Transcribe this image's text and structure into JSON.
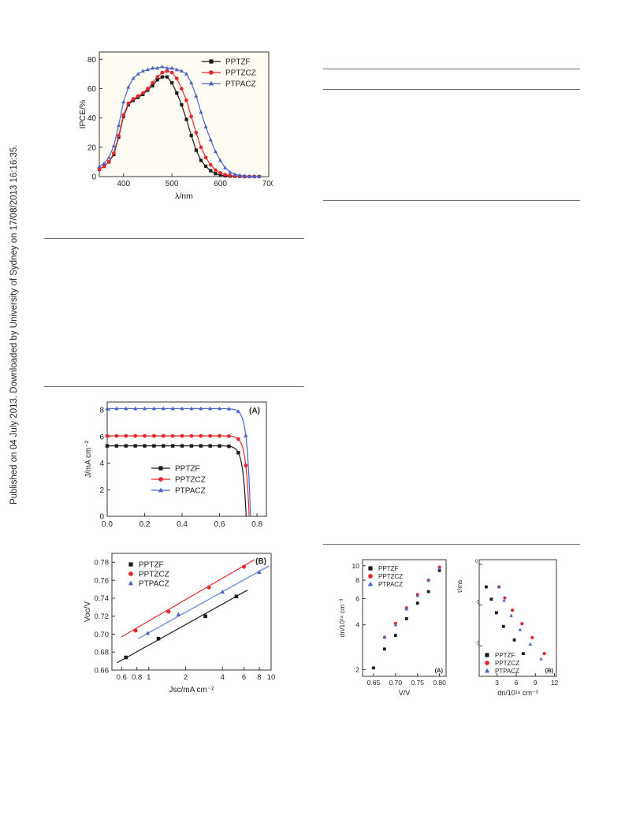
{
  "watermark": "Published on 04 July 2013. Downloaded by University of Sydney on 17/08/2013 16:16:35.",
  "colors": {
    "PPTZF": "#1a1a1a",
    "PPTZCZ": "#e8262a",
    "PTPACZ": "#4a63c6",
    "frame": "#333333",
    "fit_blue": "#5b7fd8"
  },
  "chart_data": [
    {
      "id": "ipce",
      "type": "line",
      "title": "",
      "xlabel": "λ/nm",
      "ylabel": "IPCE/%",
      "xlim": [
        350,
        700
      ],
      "ylim": [
        0,
        85
      ],
      "xticks": [
        400,
        500,
        600,
        700
      ],
      "yticks": [
        0,
        20,
        40,
        60,
        80
      ],
      "grid": false,
      "legend_position": "top-right",
      "series": [
        {
          "name": "PPTZF",
          "marker": "square",
          "x": [
            350,
            360,
            370,
            380,
            390,
            400,
            410,
            420,
            430,
            440,
            450,
            460,
            470,
            480,
            490,
            500,
            510,
            520,
            530,
            540,
            550,
            560,
            570,
            580,
            590,
            600,
            610,
            620,
            630,
            640,
            650,
            660,
            670,
            680
          ],
          "y": [
            5,
            7,
            10,
            15,
            27,
            41,
            49,
            52,
            54,
            56,
            59,
            62,
            66,
            68,
            68,
            64,
            57,
            49,
            39,
            28,
            18,
            11,
            7,
            4,
            2,
            1,
            0.5,
            0.3,
            0.2,
            0.1,
            0,
            0,
            0,
            0
          ]
        },
        {
          "name": "PPTZCZ",
          "marker": "circle",
          "x": [
            350,
            360,
            370,
            380,
            390,
            400,
            410,
            420,
            430,
            440,
            450,
            460,
            470,
            480,
            490,
            500,
            510,
            520,
            530,
            540,
            550,
            560,
            570,
            580,
            590,
            600,
            610,
            620,
            630,
            640,
            650,
            660,
            670,
            680
          ],
          "y": [
            5,
            7,
            10,
            16,
            28,
            42,
            50,
            53,
            55,
            57,
            60,
            64,
            68,
            71,
            72,
            71,
            67,
            60,
            52,
            41,
            30,
            20,
            13,
            8,
            4.5,
            2.5,
            1.3,
            0.7,
            0.4,
            0.2,
            0.1,
            0,
            0,
            0
          ]
        },
        {
          "name": "PTPACZ",
          "marker": "triangle",
          "x": [
            350,
            360,
            370,
            380,
            390,
            400,
            410,
            420,
            430,
            440,
            450,
            460,
            470,
            480,
            490,
            500,
            510,
            520,
            530,
            540,
            550,
            560,
            570,
            580,
            590,
            600,
            610,
            620,
            630,
            640,
            650,
            660,
            670,
            680
          ],
          "y": [
            7,
            9,
            13,
            21,
            35,
            51,
            61,
            67,
            70,
            72,
            73,
            74,
            74,
            75,
            74,
            74,
            73,
            72,
            70,
            64,
            55,
            44,
            34,
            25,
            17,
            11,
            6,
            3,
            1.5,
            0.8,
            0.4,
            0.2,
            0.1,
            0
          ]
        }
      ]
    },
    {
      "id": "jv",
      "type": "line",
      "panel_label": "(A)",
      "title": "",
      "xlabel": "",
      "ylabel": "J/mA cm⁻²",
      "xlim": [
        0,
        0.85
      ],
      "ylim": [
        0,
        8.6
      ],
      "xticks": [
        0.0,
        0.2,
        0.4,
        0.6,
        0.8
      ],
      "xtick_labels": [
        "0.0",
        "0.2",
        "0.4",
        "0.6",
        "0.8"
      ],
      "yticks": [
        0,
        2,
        4,
        6,
        8
      ],
      "grid": false,
      "legend_position": "center-left",
      "series": [
        {
          "name": "PPTZF",
          "jsc": 5.3,
          "voc": 0.742,
          "marker": "square",
          "marker_x": [
            0.0,
            0.05,
            0.1,
            0.15,
            0.2,
            0.25,
            0.3,
            0.35,
            0.4,
            0.45,
            0.5,
            0.55,
            0.6,
            0.65,
            0.7
          ]
        },
        {
          "name": "PPTZCZ",
          "jsc": 6.05,
          "voc": 0.758,
          "marker": "circle",
          "marker_x": [
            0.0,
            0.05,
            0.1,
            0.15,
            0.2,
            0.25,
            0.3,
            0.35,
            0.4,
            0.45,
            0.5,
            0.55,
            0.6,
            0.65,
            0.7,
            0.74
          ]
        },
        {
          "name": "PTPACZ",
          "jsc": 8.1,
          "voc": 0.765,
          "marker": "triangle",
          "marker_x": [
            0.0,
            0.05,
            0.1,
            0.15,
            0.2,
            0.25,
            0.3,
            0.35,
            0.4,
            0.45,
            0.5,
            0.55,
            0.6,
            0.65,
            0.7,
            0.74
          ]
        }
      ]
    },
    {
      "id": "voc_jsc",
      "type": "scatter",
      "panel_label": "(B)",
      "title": "",
      "xlabel": "Jsc/mA cm⁻²",
      "ylabel": "Voc/V",
      "xscale": "log",
      "xlim": [
        0.5,
        10
      ],
      "ylim": [
        0.66,
        0.79
      ],
      "xticks": [
        0.6,
        0.8,
        1,
        2,
        4,
        6,
        8,
        10
      ],
      "xtick_labels": [
        "0.6",
        "0.8",
        "1",
        "2",
        "4",
        "6",
        "8",
        "10"
      ],
      "yticks": [
        0.66,
        0.68,
        0.7,
        0.72,
        0.74,
        0.76,
        0.78
      ],
      "ytick_labels": [
        "0.66",
        "0.68",
        "0.70",
        "0.72",
        "0.74",
        "0.76",
        "0.78"
      ],
      "grid": false,
      "legend_position": "top-left",
      "series": [
        {
          "name": "PPTZF",
          "marker": "square",
          "x": [
            0.65,
            1.2,
            2.9,
            5.2
          ],
          "y": [
            0.674,
            0.695,
            0.72,
            0.742
          ],
          "fit_x": [
            0.55,
            6.4
          ],
          "fit_y": [
            0.668,
            0.749
          ]
        },
        {
          "name": "PPTZCZ",
          "marker": "circle",
          "x": [
            0.78,
            1.45,
            3.1,
            6.0
          ],
          "y": [
            0.704,
            0.725,
            0.752,
            0.775
          ],
          "fit_x": [
            0.6,
            7.3
          ],
          "fit_y": [
            0.697,
            0.783
          ]
        },
        {
          "name": "PTPACZ",
          "marker": "triangle",
          "x": [
            0.98,
            1.75,
            4.0,
            8.0
          ],
          "y": [
            0.701,
            0.722,
            0.747,
            0.769
          ],
          "fit_x": [
            0.82,
            9.6
          ],
          "fit_y": [
            0.695,
            0.776
          ]
        }
      ]
    },
    {
      "id": "dn_v",
      "type": "scatter",
      "panel_label": "(A)",
      "title": "",
      "xlabel": "V/V",
      "ylabel": "dn/10¹⁸ cm⁻³",
      "yscale": "log",
      "xlim": [
        0.625,
        0.815
      ],
      "ylim": [
        1.8,
        11
      ],
      "xticks": [
        0.65,
        0.7,
        0.75,
        0.8
      ],
      "xtick_labels": [
        "0.65",
        "0.70",
        "0.75",
        "0.80"
      ],
      "yticks": [
        2,
        4,
        6,
        8,
        10
      ],
      "ytick_labels": [
        "2",
        "4",
        "6",
        "8",
        "10"
      ],
      "grid": false,
      "legend_position": "top-left",
      "series": [
        {
          "name": "PPTZF",
          "marker": "square",
          "x": [
            0.65,
            0.675,
            0.7,
            0.725,
            0.75,
            0.775,
            0.8
          ],
          "y": [
            2.05,
            2.75,
            3.4,
            4.4,
            5.6,
            6.7,
            9.3
          ]
        },
        {
          "name": "PPTZCZ",
          "marker": "circle",
          "x": [
            0.675,
            0.7,
            0.725,
            0.75,
            0.775,
            0.8
          ],
          "y": [
            3.3,
            4.1,
            5.2,
            6.4,
            8.0,
            9.8
          ]
        },
        {
          "name": "PTPACZ",
          "marker": "triangle",
          "x": [
            0.675,
            0.7,
            0.725,
            0.75,
            0.775,
            0.8
          ],
          "y": [
            3.3,
            4.0,
            5.1,
            6.3,
            8.0,
            9.6
          ]
        }
      ]
    },
    {
      "id": "tau_dn",
      "type": "scatter",
      "panel_label": "(B)",
      "title": "",
      "xlabel": "dn/10¹⁸ cm⁻³",
      "ylabel": "τ/ms",
      "yscale": "log",
      "xlim": [
        0.2,
        12.3
      ],
      "ylim": [
        0.0018,
        1.3
      ],
      "xticks": [
        3,
        6,
        9,
        12
      ],
      "xtick_labels": [
        "3",
        "6",
        "9",
        "12"
      ],
      "yticks_exponents": [
        0,
        -1,
        -2
      ],
      "ytick_labels": [
        "",
        "",
        ""
      ],
      "grid": false,
      "legend_position": "bottom-left",
      "series": [
        {
          "name": "PPTZF",
          "marker": "square",
          "x": [
            1.3,
            2.1,
            2.9,
            4.0,
            5.7,
            7.1
          ],
          "y": [
            0.28,
            0.14,
            0.065,
            0.03,
            0.014,
            0.0065
          ]
        },
        {
          "name": "PPTZCZ",
          "marker": "circle",
          "x": [
            3.3,
            4.2,
            5.4,
            6.9,
            8.5,
            10.4
          ],
          "y": [
            0.28,
            0.15,
            0.075,
            0.035,
            0.016,
            0.0065
          ]
        },
        {
          "name": "PTPACZ",
          "marker": "triangle",
          "x": [
            3.3,
            4.1,
            5.2,
            6.6,
            8.2,
            9.9
          ],
          "y": [
            0.28,
            0.13,
            0.055,
            0.025,
            0.011,
            0.0048
          ]
        }
      ]
    }
  ]
}
